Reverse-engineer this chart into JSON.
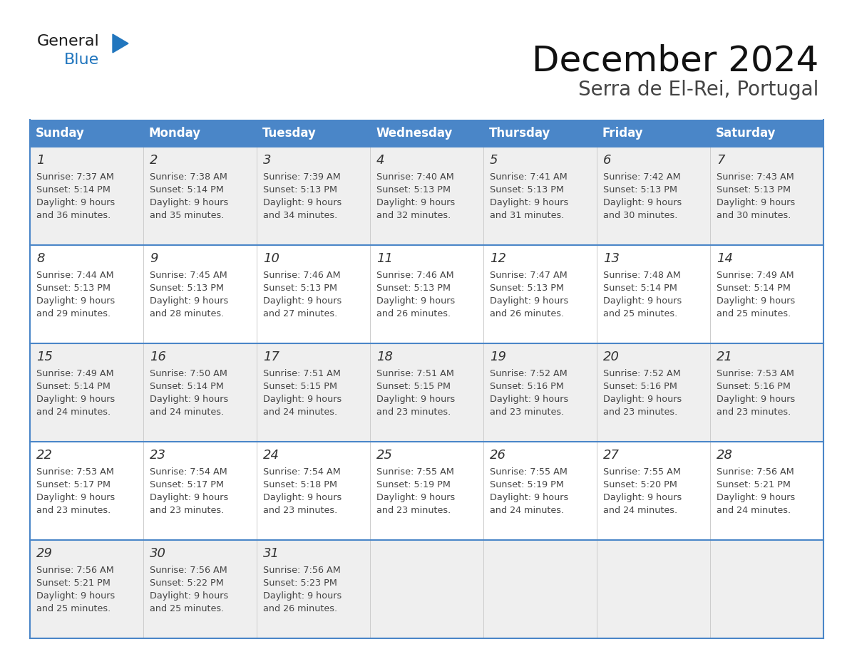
{
  "title": "December 2024",
  "subtitle": "Serra de El-Rei, Portugal",
  "days_of_week": [
    "Sunday",
    "Monday",
    "Tuesday",
    "Wednesday",
    "Thursday",
    "Friday",
    "Saturday"
  ],
  "header_bg": "#4A86C8",
  "header_text": "#FFFFFF",
  "row_bg_odd": "#EFEFEF",
  "row_bg_even": "#FFFFFF",
  "border_color": "#4A86C8",
  "day_num_color": "#333333",
  "text_color": "#444444",
  "calendar_data": [
    [
      {
        "day": "1",
        "sunrise": "7:37 AM",
        "sunset": "5:14 PM",
        "daylight_h": "9 hours",
        "daylight_m": "and 36 minutes."
      },
      {
        "day": "2",
        "sunrise": "7:38 AM",
        "sunset": "5:14 PM",
        "daylight_h": "9 hours",
        "daylight_m": "and 35 minutes."
      },
      {
        "day": "3",
        "sunrise": "7:39 AM",
        "sunset": "5:13 PM",
        "daylight_h": "9 hours",
        "daylight_m": "and 34 minutes."
      },
      {
        "day": "4",
        "sunrise": "7:40 AM",
        "sunset": "5:13 PM",
        "daylight_h": "9 hours",
        "daylight_m": "and 32 minutes."
      },
      {
        "day": "5",
        "sunrise": "7:41 AM",
        "sunset": "5:13 PM",
        "daylight_h": "9 hours",
        "daylight_m": "and 31 minutes."
      },
      {
        "day": "6",
        "sunrise": "7:42 AM",
        "sunset": "5:13 PM",
        "daylight_h": "9 hours",
        "daylight_m": "and 30 minutes."
      },
      {
        "day": "7",
        "sunrise": "7:43 AM",
        "sunset": "5:13 PM",
        "daylight_h": "9 hours",
        "daylight_m": "and 30 minutes."
      }
    ],
    [
      {
        "day": "8",
        "sunrise": "7:44 AM",
        "sunset": "5:13 PM",
        "daylight_h": "9 hours",
        "daylight_m": "and 29 minutes."
      },
      {
        "day": "9",
        "sunrise": "7:45 AM",
        "sunset": "5:13 PM",
        "daylight_h": "9 hours",
        "daylight_m": "and 28 minutes."
      },
      {
        "day": "10",
        "sunrise": "7:46 AM",
        "sunset": "5:13 PM",
        "daylight_h": "9 hours",
        "daylight_m": "and 27 minutes."
      },
      {
        "day": "11",
        "sunrise": "7:46 AM",
        "sunset": "5:13 PM",
        "daylight_h": "9 hours",
        "daylight_m": "and 26 minutes."
      },
      {
        "day": "12",
        "sunrise": "7:47 AM",
        "sunset": "5:13 PM",
        "daylight_h": "9 hours",
        "daylight_m": "and 26 minutes."
      },
      {
        "day": "13",
        "sunrise": "7:48 AM",
        "sunset": "5:14 PM",
        "daylight_h": "9 hours",
        "daylight_m": "and 25 minutes."
      },
      {
        "day": "14",
        "sunrise": "7:49 AM",
        "sunset": "5:14 PM",
        "daylight_h": "9 hours",
        "daylight_m": "and 25 minutes."
      }
    ],
    [
      {
        "day": "15",
        "sunrise": "7:49 AM",
        "sunset": "5:14 PM",
        "daylight_h": "9 hours",
        "daylight_m": "and 24 minutes."
      },
      {
        "day": "16",
        "sunrise": "7:50 AM",
        "sunset": "5:14 PM",
        "daylight_h": "9 hours",
        "daylight_m": "and 24 minutes."
      },
      {
        "day": "17",
        "sunrise": "7:51 AM",
        "sunset": "5:15 PM",
        "daylight_h": "9 hours",
        "daylight_m": "and 24 minutes."
      },
      {
        "day": "18",
        "sunrise": "7:51 AM",
        "sunset": "5:15 PM",
        "daylight_h": "9 hours",
        "daylight_m": "and 23 minutes."
      },
      {
        "day": "19",
        "sunrise": "7:52 AM",
        "sunset": "5:16 PM",
        "daylight_h": "9 hours",
        "daylight_m": "and 23 minutes."
      },
      {
        "day": "20",
        "sunrise": "7:52 AM",
        "sunset": "5:16 PM",
        "daylight_h": "9 hours",
        "daylight_m": "and 23 minutes."
      },
      {
        "day": "21",
        "sunrise": "7:53 AM",
        "sunset": "5:16 PM",
        "daylight_h": "9 hours",
        "daylight_m": "and 23 minutes."
      }
    ],
    [
      {
        "day": "22",
        "sunrise": "7:53 AM",
        "sunset": "5:17 PM",
        "daylight_h": "9 hours",
        "daylight_m": "and 23 minutes."
      },
      {
        "day": "23",
        "sunrise": "7:54 AM",
        "sunset": "5:17 PM",
        "daylight_h": "9 hours",
        "daylight_m": "and 23 minutes."
      },
      {
        "day": "24",
        "sunrise": "7:54 AM",
        "sunset": "5:18 PM",
        "daylight_h": "9 hours",
        "daylight_m": "and 23 minutes."
      },
      {
        "day": "25",
        "sunrise": "7:55 AM",
        "sunset": "5:19 PM",
        "daylight_h": "9 hours",
        "daylight_m": "and 23 minutes."
      },
      {
        "day": "26",
        "sunrise": "7:55 AM",
        "sunset": "5:19 PM",
        "daylight_h": "9 hours",
        "daylight_m": "and 24 minutes."
      },
      {
        "day": "27",
        "sunrise": "7:55 AM",
        "sunset": "5:20 PM",
        "daylight_h": "9 hours",
        "daylight_m": "and 24 minutes."
      },
      {
        "day": "28",
        "sunrise": "7:56 AM",
        "sunset": "5:21 PM",
        "daylight_h": "9 hours",
        "daylight_m": "and 24 minutes."
      }
    ],
    [
      {
        "day": "29",
        "sunrise": "7:56 AM",
        "sunset": "5:21 PM",
        "daylight_h": "9 hours",
        "daylight_m": "and 25 minutes."
      },
      {
        "day": "30",
        "sunrise": "7:56 AM",
        "sunset": "5:22 PM",
        "daylight_h": "9 hours",
        "daylight_m": "and 25 minutes."
      },
      {
        "day": "31",
        "sunrise": "7:56 AM",
        "sunset": "5:23 PM",
        "daylight_h": "9 hours",
        "daylight_m": "and 26 minutes."
      },
      null,
      null,
      null,
      null
    ]
  ]
}
